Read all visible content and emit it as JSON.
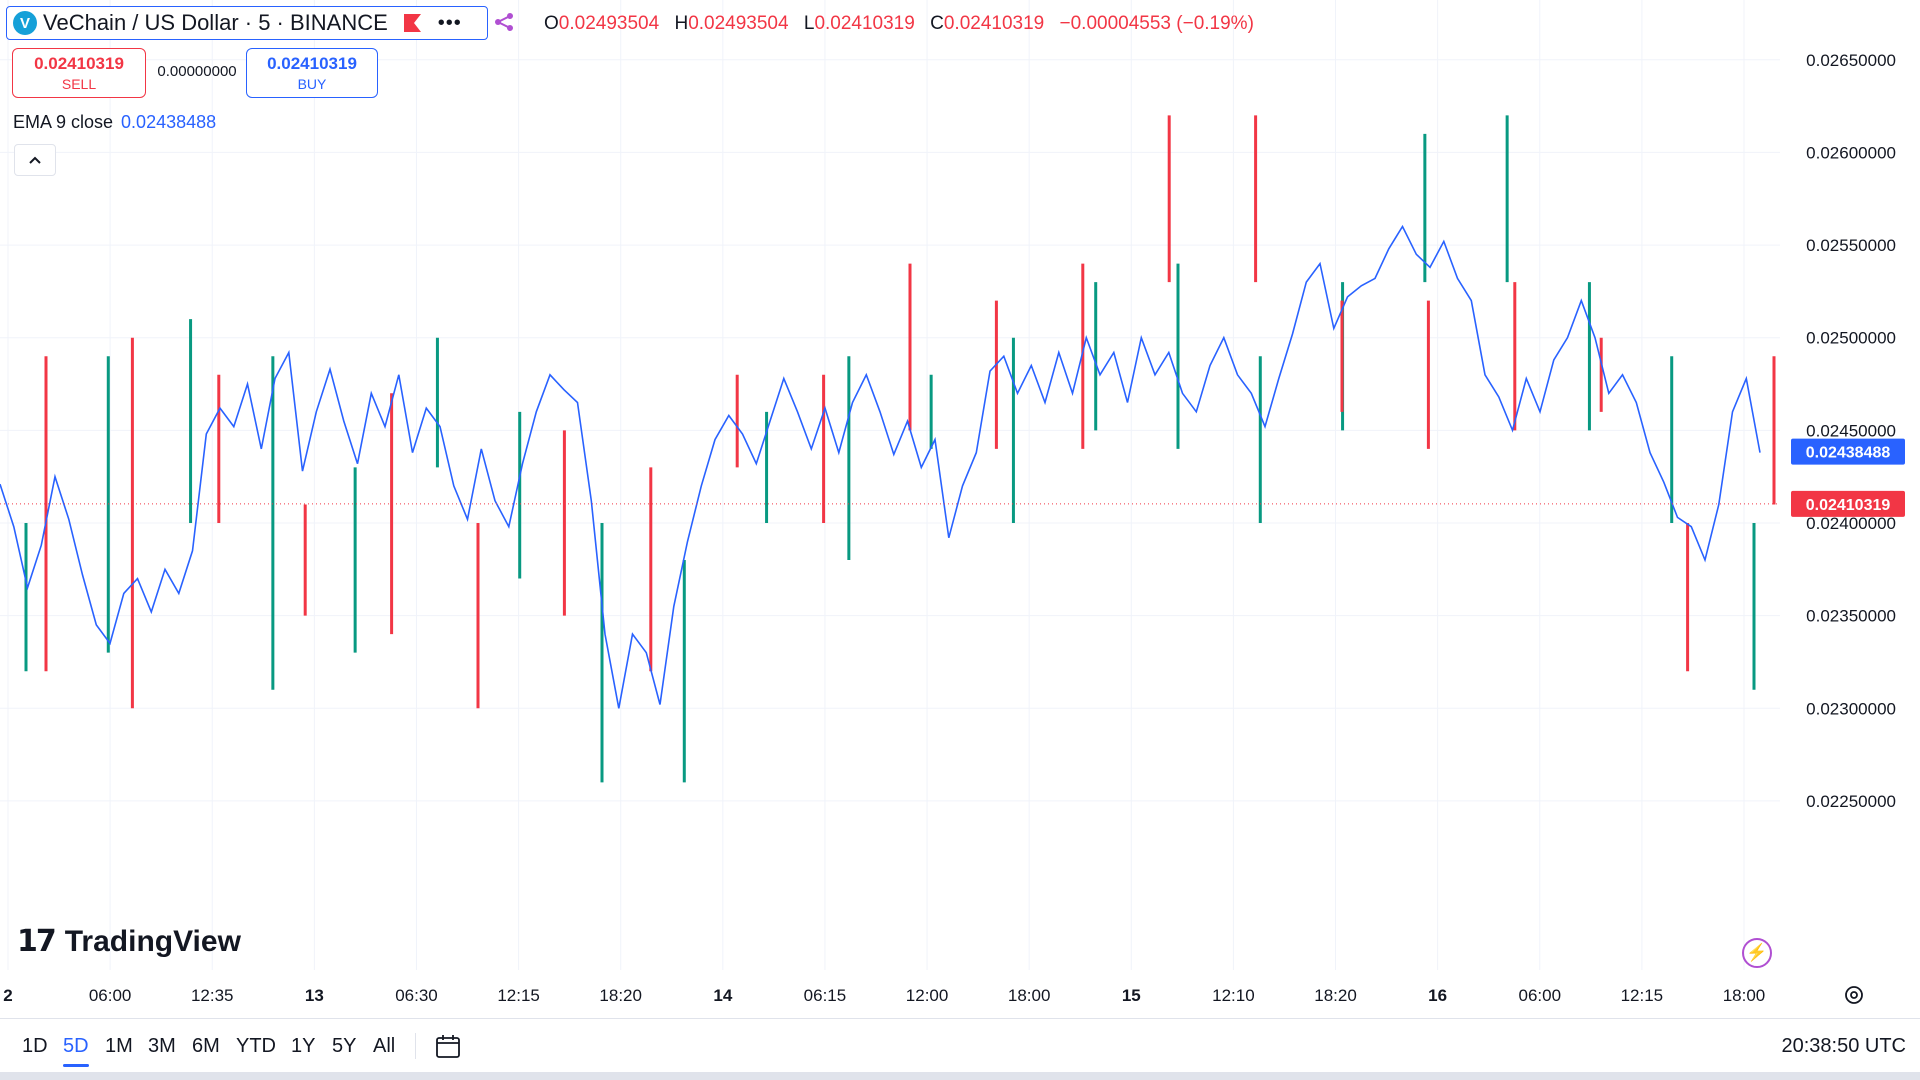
{
  "header": {
    "symbol_logo": "V",
    "symbol_title": "VeChain / US Dollar · 5 · BINANCE",
    "more_label": "•••",
    "ohlc": [
      {
        "k": "O",
        "v": "0.02493504"
      },
      {
        "k": "H",
        "v": "0.02493504"
      },
      {
        "k": "L",
        "v": "0.02410319"
      },
      {
        "k": "C",
        "v": "0.02410319"
      },
      {
        "k": "",
        "v": "−0.00004553 (−0.19%)"
      }
    ]
  },
  "trade": {
    "sell_price": "0.02410319",
    "sell_label": "SELL",
    "spread": "0.00000000",
    "buy_price": "0.02410319",
    "buy_label": "BUY"
  },
  "indicator": {
    "label": "EMA 9 close",
    "value": "0.02438488",
    "collapse_icon": "chevron-up-icon"
  },
  "brand": {
    "mark": "17",
    "name": "TradingView"
  },
  "bottom": {
    "timeframes": [
      "1D",
      "5D",
      "1M",
      "3M",
      "6M",
      "YTD",
      "1Y",
      "5Y",
      "All"
    ],
    "active_timeframe": "5D",
    "clock": "20:38:50 UTC"
  },
  "colors": {
    "up": "#089981",
    "down": "#f23645",
    "ema": "#2962ff",
    "last_price": "#f23645",
    "ema_label": "#2962ff"
  },
  "chart_data": {
    "type": "line",
    "price_axis": {
      "ticks": [
        0.0265,
        0.026,
        0.0255,
        0.025,
        0.0245,
        0.024,
        0.0235,
        0.023,
        0.0225
      ],
      "tick_labels": [
        "0.02650000",
        "0.02600000",
        "0.02550000",
        "0.02500000",
        "0.02450000",
        "0.02400000",
        "0.02350000",
        "0.02300000",
        "0.02250000"
      ],
      "ylim": [
        0.0221,
        0.02665
      ]
    },
    "time_axis": {
      "labels": [
        "2",
        "06:00",
        "12:35",
        "13",
        "06:30",
        "12:15",
        "18:20",
        "14",
        "06:15",
        "12:00",
        "18:00",
        "15",
        "12:10",
        "18:20",
        "16",
        "06:00",
        "12:15",
        "18:00"
      ],
      "bold": [
        "2",
        "13",
        "14",
        "15",
        "16"
      ]
    },
    "last_price": 0.02410319,
    "last_price_label": "0.02410319",
    "ema_last": 0.02438488,
    "ema_last_label": "0.02438488",
    "ema_series": [
      0.02421,
      0.02398,
      0.02365,
      0.02388,
      0.02425,
      0.02402,
      0.02372,
      0.02345,
      0.02335,
      0.02362,
      0.0237,
      0.02352,
      0.02375,
      0.02362,
      0.02385,
      0.02448,
      0.02462,
      0.02452,
      0.02475,
      0.0244,
      0.02478,
      0.02492,
      0.02428,
      0.0246,
      0.02483,
      0.02455,
      0.02432,
      0.0247,
      0.02452,
      0.0248,
      0.02438,
      0.02462,
      0.02452,
      0.0242,
      0.02402,
      0.0244,
      0.02412,
      0.02398,
      0.02432,
      0.0246,
      0.0248,
      0.02472,
      0.02465,
      0.02412,
      0.0234,
      0.023,
      0.0234,
      0.0233,
      0.02302,
      0.02355,
      0.0239,
      0.0242,
      0.02445,
      0.02458,
      0.02448,
      0.02432,
      0.02455,
      0.02478,
      0.0246,
      0.0244,
      0.02462,
      0.02438,
      0.02465,
      0.0248,
      0.0246,
      0.02437,
      0.02455,
      0.0243,
      0.02445,
      0.02392,
      0.0242,
      0.02438,
      0.02482,
      0.0249,
      0.0247,
      0.02485,
      0.02465,
      0.02492,
      0.0247,
      0.025,
      0.0248,
      0.02492,
      0.02465,
      0.025,
      0.0248,
      0.02492,
      0.0247,
      0.0246,
      0.02485,
      0.025,
      0.0248,
      0.0247,
      0.02452,
      0.02478,
      0.02502,
      0.0253,
      0.0254,
      0.02505,
      0.02522,
      0.02528,
      0.02532,
      0.02548,
      0.0256,
      0.02545,
      0.02538,
      0.02552,
      0.02532,
      0.0252,
      0.0248,
      0.02468,
      0.0245,
      0.02478,
      0.0246,
      0.02488,
      0.025,
      0.0252,
      0.025,
      0.0247,
      0.0248,
      0.02465,
      0.02438,
      0.02422,
      0.02403,
      0.02398,
      0.0238,
      0.0241,
      0.0246,
      0.02478,
      0.02438
    ],
    "up_spikes": [
      [
        0.024,
        0.0232
      ],
      [
        0.0249,
        0.0233
      ],
      [
        0.0251,
        0.024
      ],
      [
        0.0249,
        0.0231
      ],
      [
        0.0243,
        0.0233
      ],
      [
        0.025,
        0.0243
      ],
      [
        0.0246,
        0.0237
      ],
      [
        0.024,
        0.0226
      ],
      [
        0.0238,
        0.0226
      ],
      [
        0.0246,
        0.024
      ],
      [
        0.0249,
        0.0238
      ],
      [
        0.0248,
        0.0244
      ],
      [
        0.025,
        0.024
      ],
      [
        0.0253,
        0.0245
      ],
      [
        0.0254,
        0.0244
      ],
      [
        0.0249,
        0.024
      ],
      [
        0.0253,
        0.0245
      ],
      [
        0.0261,
        0.0253
      ],
      [
        0.0262,
        0.0253
      ],
      [
        0.0253,
        0.0245
      ],
      [
        0.0249,
        0.024
      ],
      [
        0.024,
        0.0231
      ]
    ],
    "down_spikes": [
      [
        0.0249,
        0.0232
      ],
      [
        0.025,
        0.023
      ],
      [
        0.0248,
        0.024
      ],
      [
        0.0241,
        0.0235
      ],
      [
        0.0247,
        0.0234
      ],
      [
        0.024,
        0.023
      ],
      [
        0.0245,
        0.0235
      ],
      [
        0.0243,
        0.0232
      ],
      [
        0.0248,
        0.0243
      ],
      [
        0.0248,
        0.024
      ],
      [
        0.0254,
        0.0245
      ],
      [
        0.0252,
        0.0244
      ],
      [
        0.0254,
        0.0244
      ],
      [
        0.0262,
        0.0253
      ],
      [
        0.0262,
        0.0253
      ],
      [
        0.0252,
        0.0246
      ],
      [
        0.0252,
        0.0244
      ],
      [
        0.0253,
        0.0245
      ],
      [
        0.025,
        0.0246
      ],
      [
        0.024,
        0.0232
      ],
      [
        0.0249,
        0.0241
      ]
    ]
  }
}
